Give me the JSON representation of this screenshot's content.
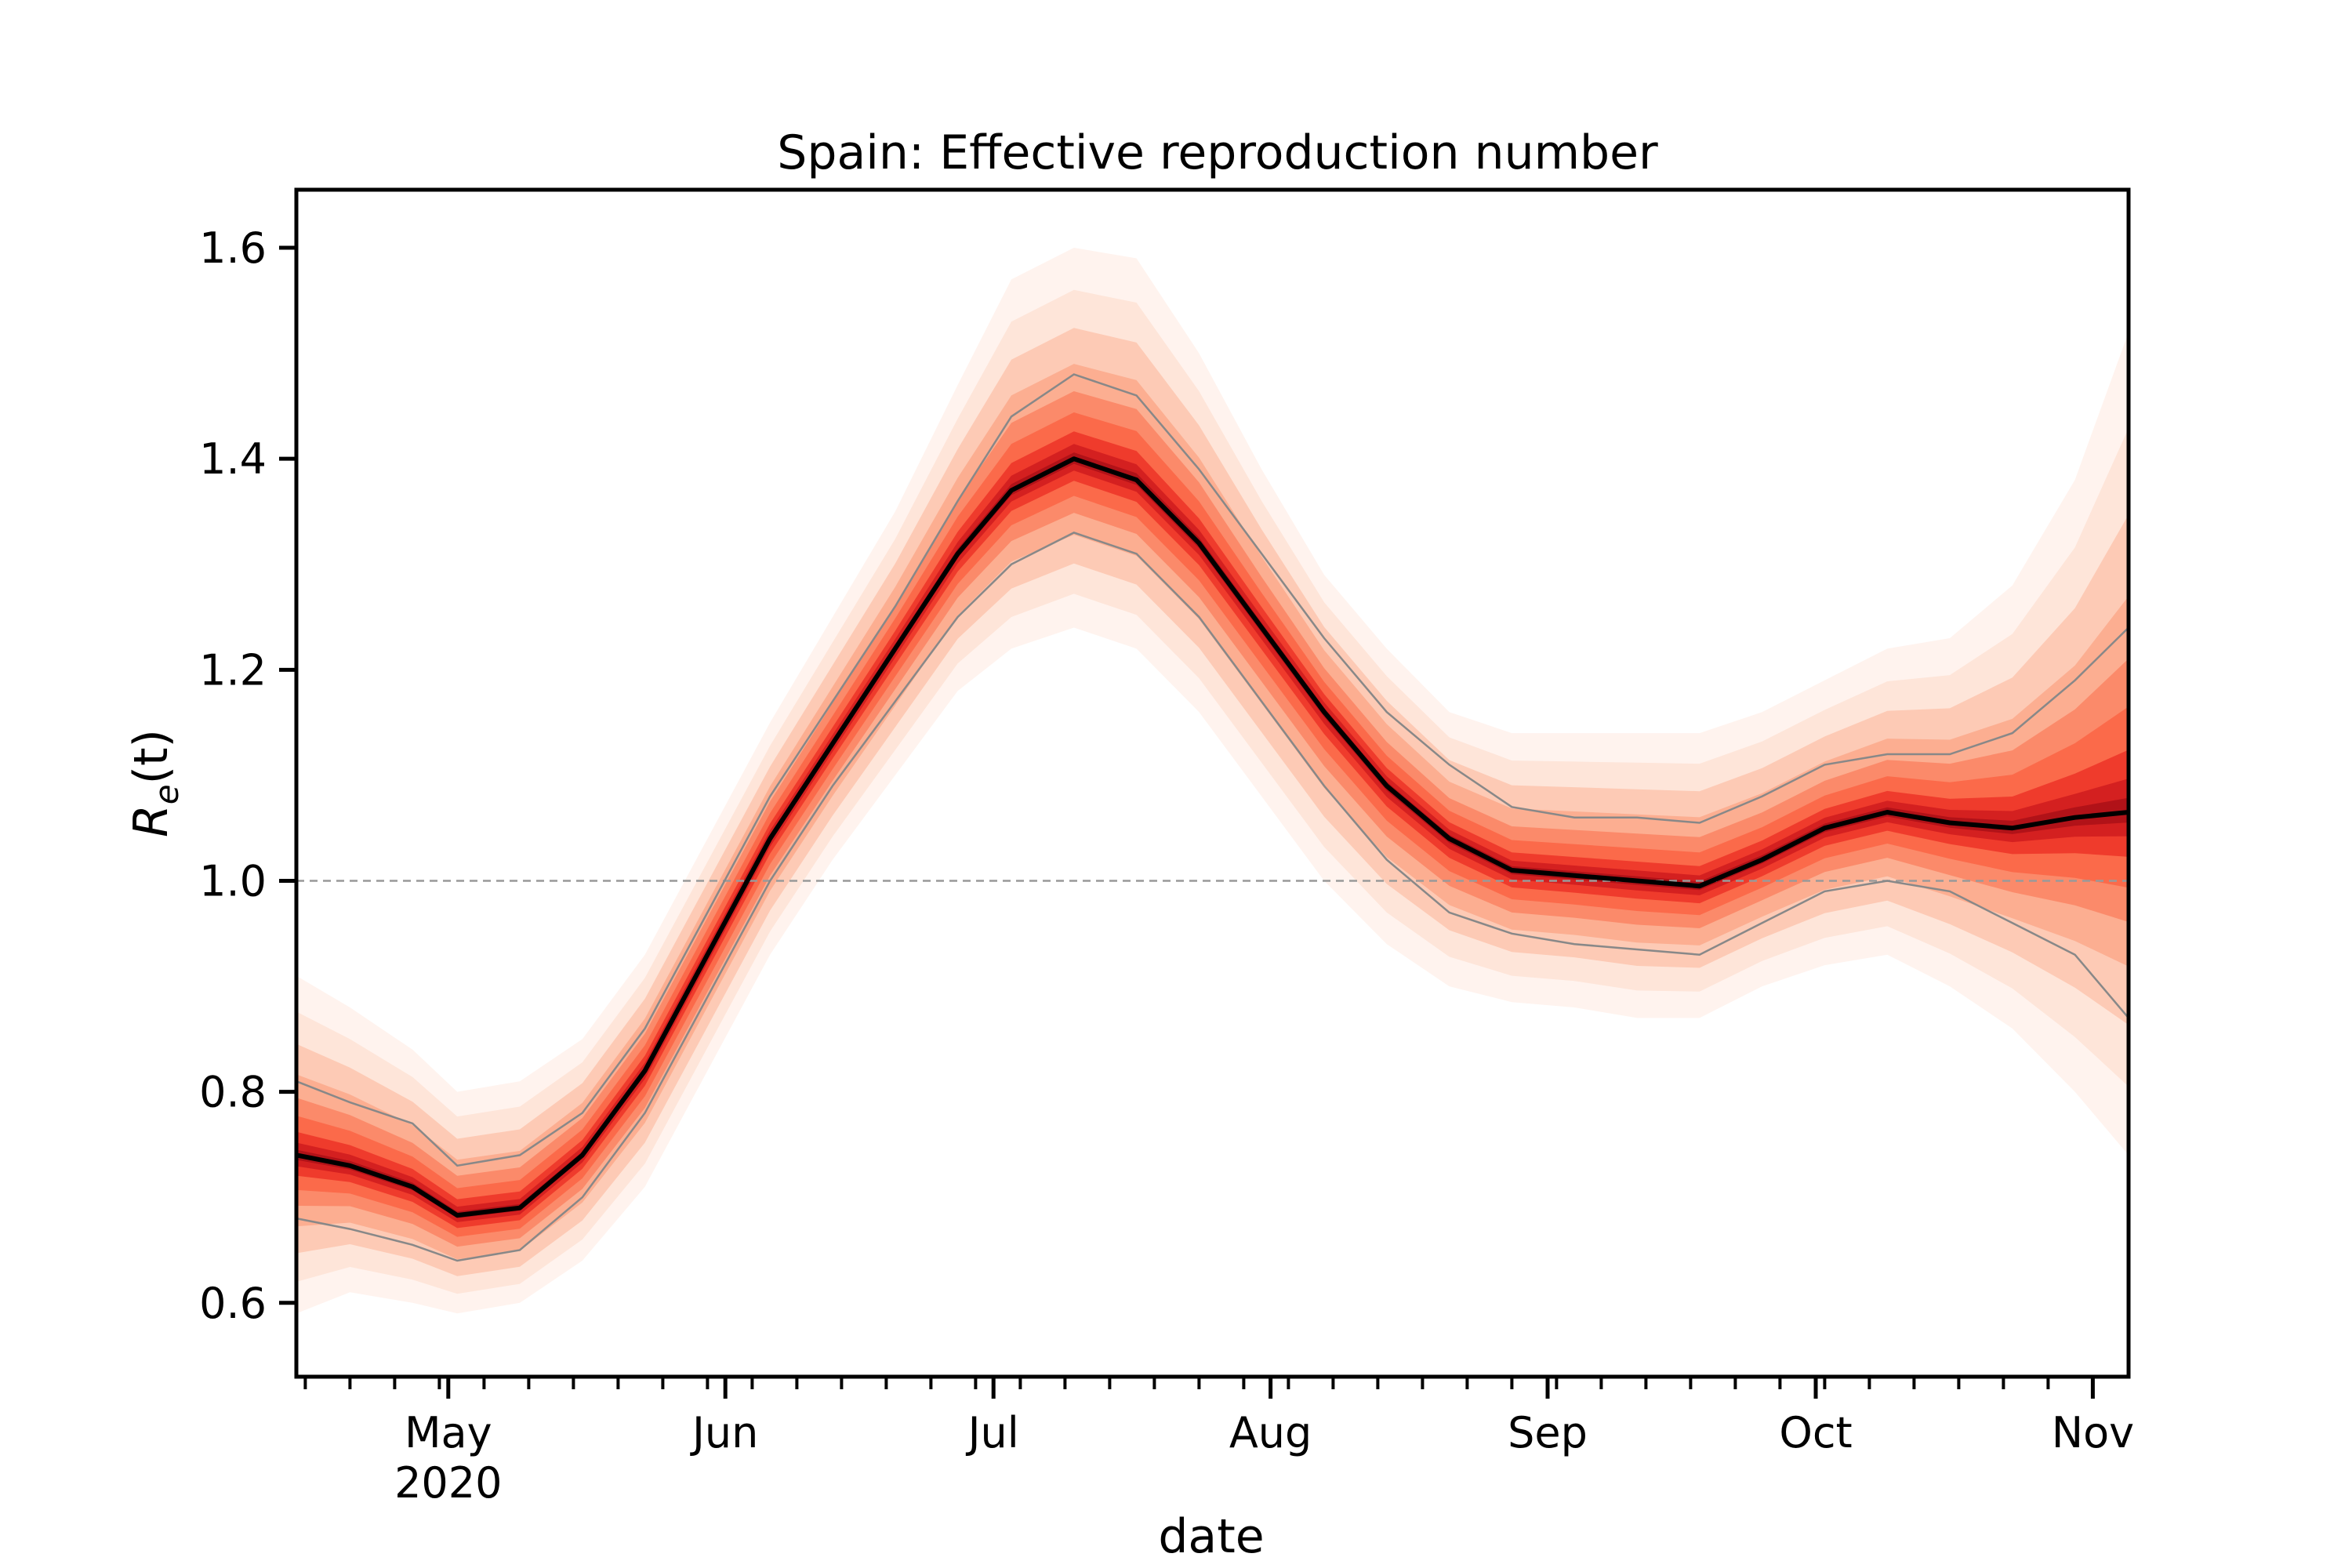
{
  "chart_data": {
    "type": "line",
    "title": "Spain: Effective reproduction number",
    "xlabel": "date",
    "ylabel_main": "R",
    "ylabel_sub": "e",
    "ylabel_arg": "(t)",
    "x_start": "2020-04-14",
    "x_end": "2020-11-05",
    "ylim": [
      0.53,
      1.655
    ],
    "yticks": [
      0.6,
      0.8,
      1.0,
      1.2,
      1.4,
      1.6
    ],
    "ytick_labels": [
      "0.6",
      "0.8",
      "1.0",
      "1.2",
      "1.4",
      "1.6"
    ],
    "month_ticks": [
      {
        "date": "2020-05-01",
        "label": "May",
        "sublabel": "2020"
      },
      {
        "date": "2020-06-01",
        "label": "Jun",
        "sublabel": ""
      },
      {
        "date": "2020-07-01",
        "label": "Jul",
        "sublabel": ""
      },
      {
        "date": "2020-08-01",
        "label": "Aug",
        "sublabel": ""
      },
      {
        "date": "2020-09-01",
        "label": "Sep",
        "sublabel": ""
      },
      {
        "date": "2020-10-01",
        "label": "Oct",
        "sublabel": ""
      },
      {
        "date": "2020-11-01",
        "label": "Nov",
        "sublabel": ""
      }
    ],
    "reference_line": 1.0,
    "grid": false,
    "colors": {
      "median": "#000000",
      "band_outer": "#fee5d9",
      "band_mid": "#fb6a4a",
      "band_inner": "#cb181d",
      "quantile": "#888888",
      "reference": "#999999"
    },
    "series": [
      {
        "x": [
          "2020-04-14",
          "2020-04-20",
          "2020-04-27",
          "2020-05-02",
          "2020-05-09",
          "2020-05-16",
          "2020-05-23",
          "2020-05-30",
          "2020-06-06",
          "2020-06-13",
          "2020-06-20",
          "2020-06-27",
          "2020-07-03",
          "2020-07-10",
          "2020-07-17",
          "2020-07-24",
          "2020-07-31",
          "2020-08-07",
          "2020-08-14",
          "2020-08-21",
          "2020-08-28",
          "2020-09-04",
          "2020-09-11",
          "2020-09-18",
          "2020-09-25",
          "2020-10-02",
          "2020-10-09",
          "2020-10-16",
          "2020-10-23",
          "2020-10-30",
          "2020-11-05"
        ],
        "median": [
          0.74,
          0.73,
          0.71,
          0.683,
          0.69,
          0.74,
          0.82,
          0.93,
          1.04,
          1.13,
          1.22,
          1.31,
          1.37,
          1.4,
          1.38,
          1.32,
          1.24,
          1.16,
          1.09,
          1.04,
          1.01,
          1.005,
          1.0,
          0.995,
          1.02,
          1.05,
          1.065,
          1.055,
          1.05,
          1.06,
          1.065
        ],
        "q_low": [
          0.68,
          0.67,
          0.655,
          0.64,
          0.65,
          0.7,
          0.78,
          0.89,
          1.0,
          1.09,
          1.17,
          1.25,
          1.3,
          1.33,
          1.31,
          1.25,
          1.17,
          1.09,
          1.02,
          0.97,
          0.95,
          0.94,
          0.935,
          0.93,
          0.96,
          0.99,
          1.0,
          0.99,
          0.96,
          0.93,
          0.87
        ],
        "q_high": [
          0.81,
          0.79,
          0.77,
          0.73,
          0.74,
          0.78,
          0.86,
          0.97,
          1.08,
          1.17,
          1.26,
          1.36,
          1.44,
          1.48,
          1.46,
          1.39,
          1.31,
          1.23,
          1.16,
          1.11,
          1.07,
          1.06,
          1.06,
          1.055,
          1.08,
          1.11,
          1.12,
          1.12,
          1.14,
          1.19,
          1.24
        ],
        "outer_low": [
          0.59,
          0.61,
          0.6,
          0.59,
          0.6,
          0.64,
          0.71,
          0.82,
          0.93,
          1.02,
          1.1,
          1.18,
          1.22,
          1.24,
          1.22,
          1.16,
          1.08,
          1.0,
          0.94,
          0.9,
          0.885,
          0.88,
          0.87,
          0.87,
          0.9,
          0.92,
          0.93,
          0.9,
          0.86,
          0.8,
          0.74
        ],
        "outer_high": [
          0.91,
          0.88,
          0.84,
          0.8,
          0.81,
          0.85,
          0.93,
          1.04,
          1.15,
          1.25,
          1.35,
          1.47,
          1.57,
          1.6,
          1.59,
          1.5,
          1.39,
          1.29,
          1.22,
          1.16,
          1.14,
          1.14,
          1.14,
          1.14,
          1.16,
          1.19,
          1.22,
          1.23,
          1.28,
          1.38,
          1.52
        ]
      }
    ]
  }
}
